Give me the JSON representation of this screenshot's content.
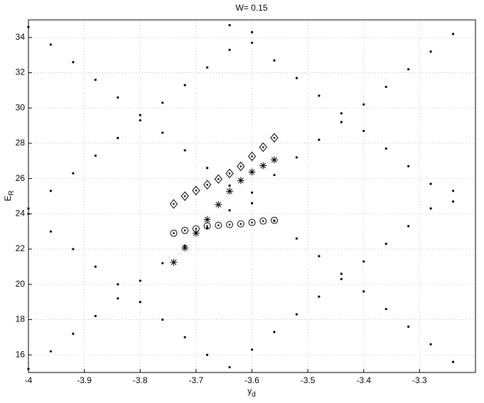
{
  "chart_data": {
    "type": "scatter",
    "title": "W= 0.15",
    "x_label": "y",
    "x_label_sub": "d",
    "y_label": "E",
    "y_label_sub": "R",
    "xlim": [
      -4,
      -3.2
    ],
    "ylim": [
      15,
      35
    ],
    "xticks": [
      -4,
      -3.9,
      -3.8,
      -3.7,
      -3.6,
      -3.5,
      -3.4,
      -3.3
    ],
    "yticks": [
      16,
      18,
      20,
      22,
      24,
      26,
      28,
      30,
      32,
      34
    ],
    "grid": true,
    "series": [
      {
        "marker": "dot",
        "color": "#000000",
        "x": [
          -4,
          -3.96,
          -3.92,
          -3.88,
          -3.84,
          -3.8,
          -3.76,
          -3.72,
          -3.68,
          -3.64,
          -3.6,
          -3.56,
          -3.52,
          -3.48,
          -3.44,
          -3.4,
          -3.36,
          -3.32,
          -3.28,
          -3.24
        ],
        "values": [
          15.2,
          16.2,
          17.2,
          18.2,
          19.2,
          20.2,
          21.2,
          22.2,
          23.2,
          24.2,
          25.2,
          26.2,
          27.2,
          28.2,
          29.2,
          30.2,
          31.2,
          32.2,
          33.2,
          34.2
        ]
      },
      {
        "marker": "dot",
        "color": "#000000",
        "x": [
          -4,
          -3.96,
          -3.92,
          -3.88,
          -3.84,
          -3.8,
          -3.76,
          -3.72,
          -3.68,
          -3.64,
          -3.6
        ],
        "values": [
          24.3,
          25.3,
          26.3,
          27.3,
          28.3,
          29.3,
          30.3,
          31.3,
          32.3,
          33.3,
          34.3
        ]
      },
      {
        "marker": "dot",
        "color": "#000000",
        "x": [
          -3.64,
          -3.6,
          -3.56,
          -3.52,
          -3.48,
          -3.44,
          -3.4,
          -3.36,
          -3.32,
          -3.28,
          -3.24
        ],
        "values": [
          15.3,
          16.3,
          17.3,
          18.3,
          19.3,
          20.3,
          21.3,
          22.3,
          23.3,
          24.3,
          25.3
        ]
      },
      {
        "marker": "dot",
        "color": "#000000",
        "x": [
          -4,
          -3.96,
          -3.92,
          -3.88,
          -3.84,
          -3.8,
          -3.76,
          -3.72,
          -3.68,
          -3.64,
          -3.6,
          -3.56,
          -3.52,
          -3.48,
          -3.44,
          -3.4,
          -3.36,
          -3.32,
          -3.28,
          -3.24
        ],
        "values": [
          34.6,
          33.6,
          32.6,
          31.6,
          30.6,
          29.6,
          28.6,
          27.6,
          26.6,
          25.6,
          24.6,
          23.6,
          22.6,
          21.6,
          20.6,
          19.6,
          18.6,
          17.6,
          16.6,
          15.6
        ]
      },
      {
        "marker": "dot",
        "color": "#000000",
        "x": [
          -4,
          -3.96,
          -3.92,
          -3.88,
          -3.84,
          -3.8,
          -3.76,
          -3.72,
          -3.68
        ],
        "values": [
          24,
          23,
          22,
          21,
          20,
          19,
          18,
          17,
          16
        ]
      },
      {
        "marker": "dot",
        "color": "#000000",
        "x": [
          -3.64,
          -3.6,
          -3.56,
          -3.52,
          -3.48,
          -3.44,
          -3.4,
          -3.36,
          -3.32,
          -3.28,
          -3.24
        ],
        "values": [
          34.7,
          33.7,
          32.7,
          31.7,
          30.7,
          29.7,
          28.7,
          27.7,
          26.7,
          25.7,
          24.7
        ]
      },
      {
        "marker": "diamond",
        "color": "#000000",
        "x": [
          -3.74,
          -3.72,
          -3.7,
          -3.68,
          -3.66,
          -3.64,
          -3.62,
          -3.6,
          -3.58,
          -3.56
        ],
        "values": [
          24.56,
          25.0,
          25.32,
          25.65,
          25.97,
          26.29,
          26.69,
          27.26,
          27.78,
          28.31
        ]
      },
      {
        "marker": "star",
        "color": "#000000",
        "x": [
          -3.74,
          -3.72,
          -3.7,
          -3.68,
          -3.66,
          -3.64,
          -3.62,
          -3.6,
          -3.58,
          -3.56
        ],
        "values": [
          21.25,
          22.06,
          22.9,
          23.67,
          24.52,
          25.28,
          25.89,
          26.37,
          26.73,
          27.06
        ]
      },
      {
        "marker": "circle",
        "color": "#000000",
        "x": [
          -3.74,
          -3.72,
          -3.7,
          -3.68,
          -3.66,
          -3.64,
          -3.62,
          -3.6,
          -3.58,
          -3.56
        ],
        "values": [
          22.9,
          23.06,
          23.15,
          23.31,
          23.35,
          23.39,
          23.43,
          23.51,
          23.59,
          23.63
        ]
      }
    ]
  }
}
